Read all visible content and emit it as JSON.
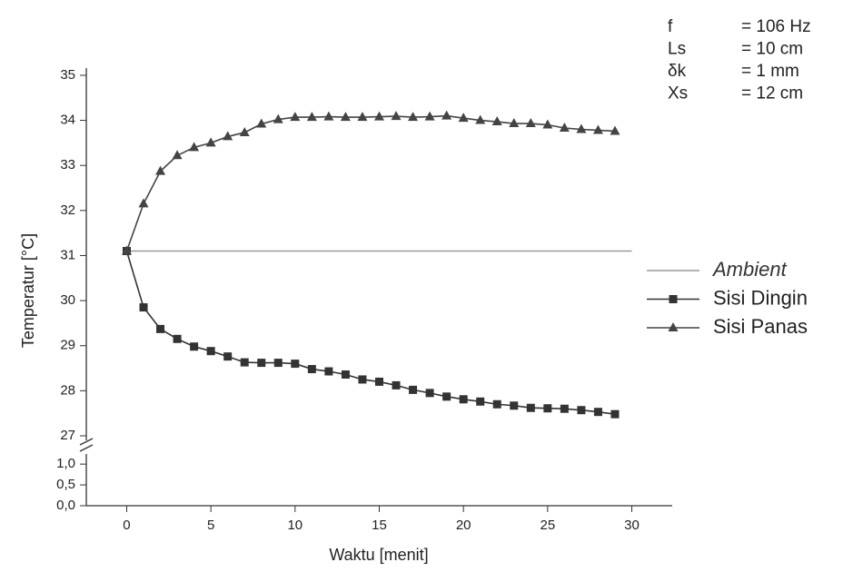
{
  "chart_data": {
    "type": "line",
    "x_label": "Waktu [menit]",
    "y_label": "Temperatur [°C]",
    "xlim": [
      -2.4,
      32.4
    ],
    "xticks": [
      0,
      5,
      10,
      15,
      20,
      25,
      30
    ],
    "ylim": [
      27,
      35.2
    ],
    "yticks": [
      27,
      28,
      29,
      30,
      31,
      32,
      33,
      34,
      35
    ],
    "ylim_lower": [
      0,
      1.2
    ],
    "yticks_lower": [
      {
        "value": 0,
        "label": "0,0"
      },
      {
        "value": 0.5,
        "label": "0,5"
      },
      {
        "value": 1,
        "label": "1,0"
      }
    ],
    "annotations": [
      {
        "name": "f",
        "text": "= 106 Hz"
      },
      {
        "name": "Ls",
        "text": "= 10 cm"
      },
      {
        "name": "δk",
        "text": "= 1 mm"
      },
      {
        "name": "Xs",
        "text": "= 12 cm"
      }
    ],
    "series": [
      {
        "name": "Ambient",
        "color": "#9a9a9a",
        "marker": "none",
        "x": [
          0,
          30
        ],
        "values": [
          31.1,
          31.1
        ]
      },
      {
        "name": "Sisi Dingin",
        "color": "#333333",
        "marker": "square",
        "x": [
          0,
          1,
          2,
          3,
          4,
          5,
          6,
          7,
          8,
          9,
          10,
          11,
          12,
          13,
          14,
          15,
          16,
          17,
          18,
          19,
          20,
          21,
          22,
          23,
          24,
          25,
          26,
          27,
          28,
          29
        ],
        "values": [
          31.1,
          29.85,
          29.37,
          29.15,
          28.98,
          28.88,
          28.76,
          28.63,
          28.62,
          28.62,
          28.6,
          28.48,
          28.43,
          28.36,
          28.25,
          28.2,
          28.12,
          28.02,
          27.95,
          27.87,
          27.81,
          27.76,
          27.7,
          27.67,
          27.62,
          27.61,
          27.6,
          27.57,
          27.53,
          27.48
        ]
      },
      {
        "name": "Sisi Panas",
        "color": "#444444",
        "marker": "triangle",
        "x": [
          0,
          1,
          2,
          3,
          4,
          5,
          6,
          7,
          8,
          9,
          10,
          11,
          12,
          13,
          14,
          15,
          16,
          17,
          18,
          19,
          20,
          21,
          22,
          23,
          24,
          25,
          26,
          27,
          28,
          29
        ],
        "values": [
          31.1,
          32.15,
          32.87,
          33.22,
          33.4,
          33.5,
          33.64,
          33.73,
          33.92,
          34.02,
          34.07,
          34.07,
          34.08,
          34.07,
          34.07,
          34.08,
          34.09,
          34.07,
          34.08,
          34.1,
          34.05,
          34.0,
          33.97,
          33.93,
          33.93,
          33.9,
          33.83,
          33.8,
          33.78,
          33.76
        ]
      }
    ]
  }
}
